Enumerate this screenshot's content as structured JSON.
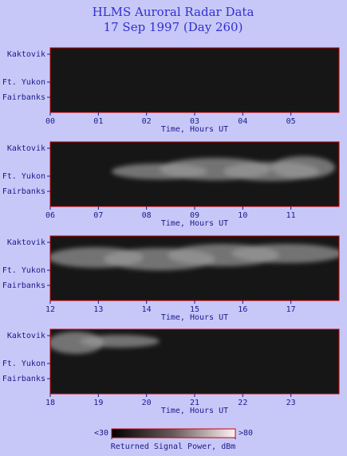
{
  "title": "HLMS Auroral Radar Data",
  "subtitle": "17 Sep 1997 (Day 260)",
  "chart_data": [
    {
      "type": "heatmap",
      "x_label": "Time, Hours UT",
      "y_categories": [
        "Kaktovik",
        "Ft. Yukon",
        "Fairbanks"
      ],
      "xlim": [
        0,
        6
      ],
      "xticks": [
        {
          "value": 0,
          "label": "00"
        },
        {
          "value": 1,
          "label": "01"
        },
        {
          "value": 2,
          "label": "02"
        },
        {
          "value": 3,
          "label": "03"
        },
        {
          "value": 4,
          "label": "04"
        },
        {
          "value": 5,
          "label": "05"
        }
      ]
    },
    {
      "type": "heatmap",
      "x_label": "Time, Hours UT",
      "y_categories": [
        "Kaktovik",
        "Ft. Yukon",
        "Fairbanks"
      ],
      "xlim": [
        6,
        12
      ],
      "xticks": [
        {
          "value": 6,
          "label": "06"
        },
        {
          "value": 7,
          "label": "07"
        },
        {
          "value": 8,
          "label": "08"
        },
        {
          "value": 9,
          "label": "09"
        },
        10,
        11
      ]
    },
    {
      "type": "heatmap",
      "x_label": "Time, Hours UT",
      "y_categories": [
        "Kaktovik",
        "Ft. Yukon",
        "Fairbanks"
      ],
      "xlim": [
        12,
        18
      ],
      "xticks": [
        12,
        13,
        14,
        15,
        16,
        17
      ]
    },
    {
      "type": "heatmap",
      "x_label": "Time, Hours UT",
      "y_categories": [
        "Kaktovik",
        "Ft. Yukon",
        "Fairbanks"
      ],
      "xlim": [
        18,
        24
      ],
      "xticks": [
        18,
        19,
        20,
        21,
        22,
        23
      ]
    }
  ],
  "colorbar": {
    "label": "Returned Signal Power, dBm",
    "lim": [
      30,
      80
    ],
    "ticks": [
      {
        "value": 30,
        "label": "<30"
      },
      {
        "value": 80,
        "label": ">80"
      }
    ]
  }
}
